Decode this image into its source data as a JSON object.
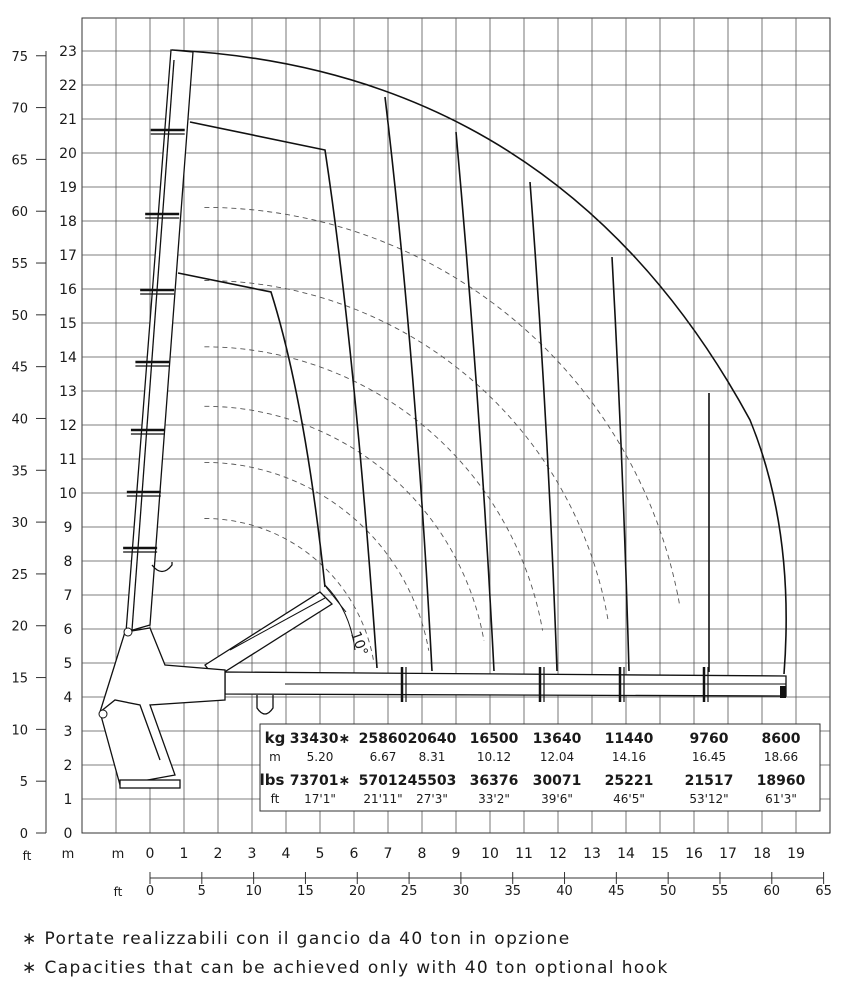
{
  "chart_data": {
    "type": "diagram",
    "y_m_ticks": [
      "0",
      "1",
      "2",
      "3",
      "4",
      "5",
      "6",
      "7",
      "8",
      "9",
      "10",
      "11",
      "12",
      "13",
      "14",
      "15",
      "16",
      "17",
      "18",
      "19",
      "20",
      "21",
      "22",
      "23"
    ],
    "y_ft_ticks": [
      "0",
      "5",
      "10",
      "15",
      "20",
      "25",
      "30",
      "35",
      "40",
      "45",
      "50",
      "55",
      "60",
      "65",
      "70",
      "75"
    ],
    "x_m_ticks": [
      "0",
      "1",
      "2",
      "3",
      "4",
      "5",
      "6",
      "7",
      "8",
      "9",
      "10",
      "11",
      "12",
      "13",
      "14",
      "15",
      "16",
      "17",
      "18",
      "19"
    ],
    "x_ft_ticks": [
      "0",
      "5",
      "10",
      "15",
      "20",
      "25",
      "30",
      "35",
      "40",
      "45",
      "50",
      "55",
      "60",
      "65"
    ],
    "unit_ft": "ft",
    "unit_m": "m",
    "angle_label": "10°",
    "capacity_table": {
      "kg_label": "kg",
      "m_label": "m",
      "lbs_label": "lbs",
      "ft_label": "ft",
      "kg": [
        "33430∗",
        "25860",
        "20640",
        "16500",
        "13640",
        "11440",
        "9760",
        "8600"
      ],
      "m": [
        "5.20",
        "6.67",
        "8.31",
        "10.12",
        "12.04",
        "14.16",
        "16.45",
        "18.66"
      ],
      "lbs": [
        "73701∗",
        "57012",
        "45503",
        "36376",
        "30071",
        "25221",
        "21517",
        "18960"
      ],
      "ft": [
        "17'1\"",
        "21'11\"",
        "27'3\"",
        "33'2\"",
        "39'6\"",
        "46'5\"",
        "53'12\"",
        "61'3\""
      ]
    },
    "working_radii_m": [
      5.2,
      6.67,
      8.31,
      10.12,
      12.04,
      14.16,
      16.45,
      18.66
    ],
    "grid": true
  },
  "footnotes": [
    "∗ Portate realizzabili con il gancio da 40 ton in opzione",
    "∗ Capacities that can be achieved only with 40 ton optional hook"
  ]
}
